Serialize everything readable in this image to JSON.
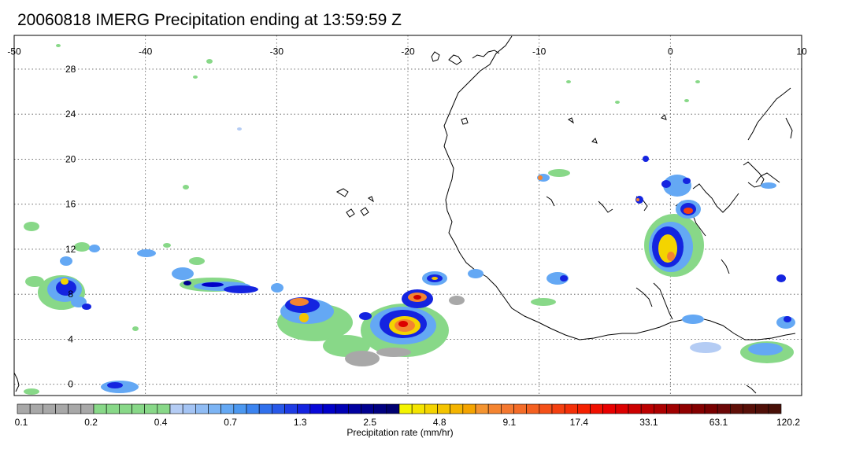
{
  "title": "20060818 IMERG Precipitation ending at 13:59:59 Z",
  "map": {
    "lon_range": [
      -50,
      10
    ],
    "lat_range": [
      -1,
      31
    ],
    "lon_ticks": [
      "-50",
      "-40",
      "-30",
      "-20",
      "-10",
      "0",
      "10"
    ],
    "lat_ticks": [
      "28",
      "24",
      "20",
      "16",
      "12",
      "8",
      "4",
      "0"
    ],
    "grid": true
  },
  "colorbar": {
    "label": "Precipitation rate (mm/hr)",
    "tick_labels": [
      "0.1",
      "0.2",
      "0.4",
      "0.7",
      "1.3",
      "2.5",
      "4.8",
      "9.1",
      "17.4",
      "33.1",
      "63.1",
      "120.2"
    ],
    "colors": [
      "#a8a8a8",
      "#a8a8a8",
      "#a8a8a8",
      "#a8a8a8",
      "#a8a8a8",
      "#a8a8a8",
      "#88d888",
      "#88d888",
      "#88d888",
      "#88d888",
      "#88d888",
      "#88d888",
      "#b4ccf4",
      "#a4c4f4",
      "#90bcf4",
      "#7cb4f4",
      "#64a8f4",
      "#4c98f0",
      "#3c84f0",
      "#3070ec",
      "#2858e8",
      "#1e3ce4",
      "#1424e0",
      "#0808d8",
      "#0000c8",
      "#0000b4",
      "#0000a0",
      "#000090",
      "#000080",
      "#000070",
      "#f4f400",
      "#f4e400",
      "#f4d400",
      "#f4c400",
      "#f4b400",
      "#f4a400",
      "#f49430",
      "#f48430",
      "#f47830",
      "#f46c28",
      "#f46020",
      "#f45018",
      "#f44010",
      "#f43008",
      "#f42000",
      "#f01000",
      "#e80000",
      "#dc0000",
      "#cc0000",
      "#bc0000",
      "#ac0000",
      "#a00000",
      "#900000",
      "#840000",
      "#780000",
      "#6c0808",
      "#601008",
      "#581008",
      "#501008",
      "#481008"
    ]
  }
}
